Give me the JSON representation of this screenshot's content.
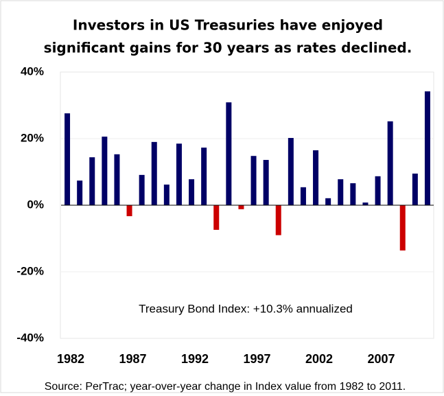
{
  "chart_data": {
    "type": "bar",
    "title": [
      "Investors in US Treasuries have enjoyed",
      "significant gains for 30 years as rates declined."
    ],
    "categories": [
      "1982",
      null,
      null,
      null,
      null,
      "1987",
      null,
      null,
      null,
      null,
      "1992",
      null,
      null,
      null,
      null,
      "1997",
      null,
      null,
      null,
      null,
      "2002",
      null,
      null,
      null,
      null,
      "2007",
      null,
      null,
      null,
      null
    ],
    "values": [
      27.6,
      7.4,
      14.4,
      20.6,
      15.3,
      -3.3,
      9.1,
      19.0,
      6.2,
      18.5,
      7.8,
      17.3,
      -7.4,
      30.9,
      -1.2,
      14.8,
      13.6,
      -9.0,
      20.2,
      5.4,
      16.5,
      2.1,
      7.8,
      6.6,
      0.8,
      8.7,
      25.2,
      -13.6,
      9.5,
      34.2
    ],
    "color": "#000066",
    "negative_color": "#cc0000",
    "ylim": [
      -40,
      40
    ],
    "yticks": [
      {
        "value": 40,
        "label": "40%"
      },
      {
        "value": 20,
        "label": "20%"
      },
      {
        "value": 0,
        "label": "0%"
      },
      {
        "value": -20,
        "label": "-20%"
      },
      {
        "value": -40,
        "label": "-40%"
      }
    ],
    "grid": true,
    "annotation": "Treasury Bond Index: +10.3% annualized",
    "source": "Source: PerTrac; year-over-year change in Index value from 1982 to 2011."
  }
}
